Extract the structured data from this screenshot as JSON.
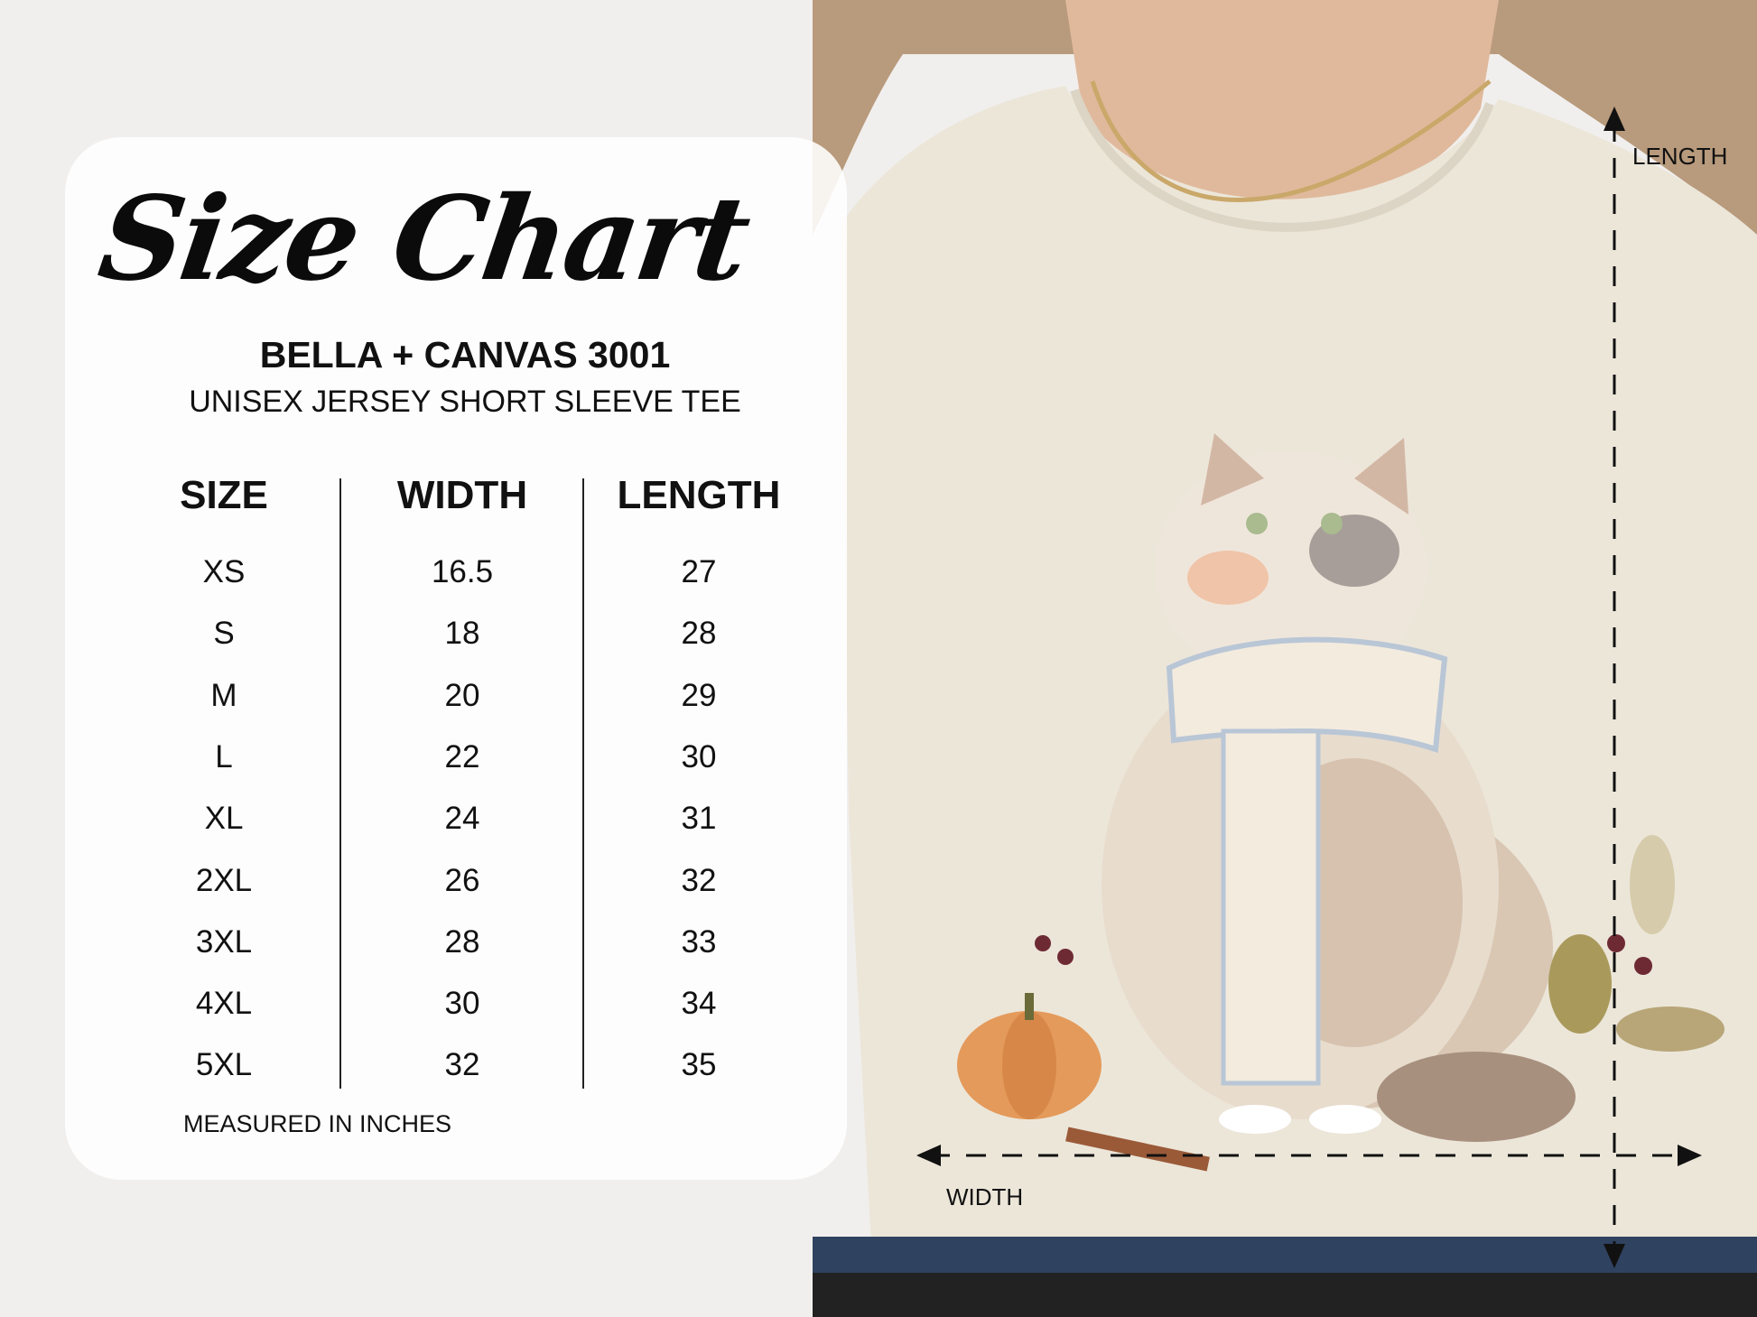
{
  "title": "Size Chart",
  "product": {
    "model": "BELLA + CANVAS 3001",
    "description": "UNISEX JERSEY SHORT SLEEVE TEE"
  },
  "table": {
    "headers": [
      "SIZE",
      "WIDTH",
      "LENGTH"
    ],
    "rows": [
      [
        "XS",
        "16.5",
        "27"
      ],
      [
        "S",
        "18",
        "28"
      ],
      [
        "M",
        "20",
        "29"
      ],
      [
        "L",
        "22",
        "30"
      ],
      [
        "XL",
        "24",
        "31"
      ],
      [
        "2XL",
        "26",
        "32"
      ],
      [
        "3XL",
        "28",
        "33"
      ],
      [
        "4XL",
        "30",
        "34"
      ],
      [
        "5XL",
        "32",
        "35"
      ]
    ]
  },
  "footnote": "MEASURED IN INCHES",
  "measure_labels": {
    "length": "LENGTH",
    "width": "WIDTH"
  },
  "colors": {
    "shirt": "#ece6d9",
    "background": "#f1efed",
    "text": "#111111",
    "hair": "#b89a7c"
  }
}
